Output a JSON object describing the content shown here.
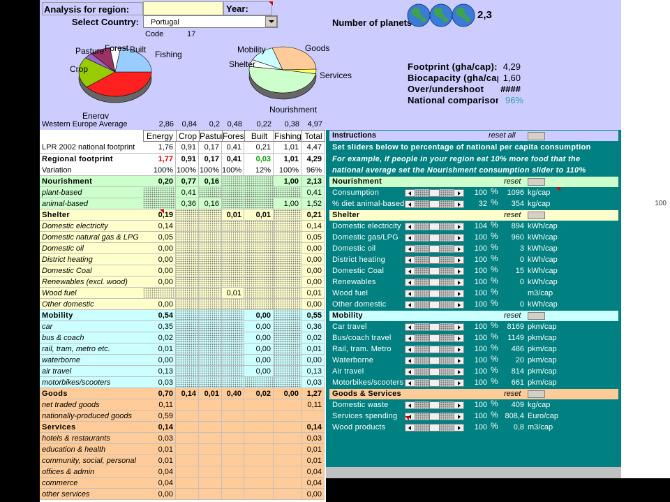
{
  "header": {
    "region_label": "Analysis for region:",
    "year_label": "Year:",
    "country_label": "Select Country:",
    "country": "Portugal",
    "code_label": "Code",
    "code": "17",
    "planets_label": "Number of planets",
    "planets": "2,3"
  },
  "pies": [
    {
      "categories": [
        "Energy",
        "Crop",
        "Pasture",
        "Forest",
        "Built",
        "Fishing"
      ],
      "values": [
        1.76,
        0.91,
        0.17,
        0.41,
        0.21,
        1.01
      ],
      "colors": [
        "#ff2020",
        "#99cc00",
        "#9966cc",
        "#993366",
        "#ffffff",
        "#99ccff"
      ]
    },
    {
      "categories": [
        "Nourishment",
        "Shelter",
        "Mobility",
        "Goods",
        "Services"
      ],
      "values": [
        2.13,
        0.21,
        0.55,
        1.27,
        0.14
      ],
      "colors": [
        "#ccffcc",
        "#ffffff",
        "#ccffff",
        "#ffcc99",
        "#ffff66"
      ]
    }
  ],
  "summary": [
    {
      "label": "Footprint (gha/cap):",
      "value": "4,29"
    },
    {
      "label": "Biocapacity (gha/cap):",
      "value": "1,60"
    },
    {
      "label": "Over/undershoot",
      "value": "####"
    },
    {
      "label": "National comparison",
      "value": "96%"
    }
  ],
  "table": {
    "columns": [
      "Energy",
      "Crop",
      "Pasture",
      "Forest",
      "Built",
      "Fishing",
      "Total"
    ],
    "average": {
      "label": "Western Europe Average",
      "cells": [
        "2,86",
        "0,84",
        "0,2",
        "0,48",
        "0,22",
        "0,38",
        "4,97"
      ]
    },
    "rows": [
      {
        "label": "LPR 2002 national footprint",
        "cells": [
          "1,76",
          "0,91",
          "0,17",
          "0,41",
          "0,21",
          "1,01",
          "4,47"
        ]
      },
      {
        "label": "Regional footprint",
        "cells": [
          "1,77",
          "0,91",
          "0,17",
          "0,41",
          "0,03",
          "1,01",
          "4,29"
        ]
      },
      {
        "label": "Variation",
        "cells": [
          "100%",
          "100%",
          "100%",
          "100%",
          "12%",
          "100%",
          "96%"
        ]
      },
      {
        "label": "Nourishment",
        "cells": [
          "0,20",
          "0,77",
          "0,16",
          null,
          null,
          "1,00",
          "2,13"
        ]
      },
      {
        "label": "plant-based",
        "cells": [
          null,
          "0,41",
          null,
          null,
          null,
          null,
          "0,41"
        ]
      },
      {
        "label": "animal-based",
        "cells": [
          null,
          "0,36",
          "0,16",
          null,
          null,
          "1,00",
          "1,52"
        ]
      },
      {
        "label": "Shelter",
        "cells": [
          "0,19",
          null,
          null,
          "0,01",
          "0,01",
          null,
          "0,21"
        ]
      },
      {
        "label": "Domestic electricity",
        "cells": [
          "0,14",
          null,
          null,
          null,
          null,
          null,
          "0,14"
        ]
      },
      {
        "label": "Domestic natural gas & LPG",
        "cells": [
          "0,05",
          null,
          null,
          null,
          null,
          null,
          "0,05"
        ]
      },
      {
        "label": "Domestic oil",
        "cells": [
          "0,00",
          null,
          null,
          null,
          null,
          null,
          "0,00"
        ]
      },
      {
        "label": "District heating",
        "cells": [
          "0,00",
          null,
          null,
          null,
          null,
          null,
          "0,00"
        ]
      },
      {
        "label": "Domestic Coal",
        "cells": [
          "0,00",
          null,
          null,
          null,
          null,
          null,
          "0,00"
        ]
      },
      {
        "label": "Renewables (excl. wood)",
        "cells": [
          "0,00",
          null,
          null,
          null,
          null,
          null,
          "0,00"
        ]
      },
      {
        "label": "Wood fuel",
        "cells": [
          null,
          null,
          null,
          "0,01",
          null,
          null,
          "0,01"
        ]
      },
      {
        "label": "Other domestic",
        "cells": [
          "0,00",
          null,
          null,
          null,
          null,
          null,
          "0,00"
        ]
      },
      {
        "label": "Mobility",
        "cells": [
          "0,54",
          null,
          null,
          null,
          "0,00",
          null,
          "0,55"
        ]
      },
      {
        "label": "car",
        "cells": [
          "0,35",
          null,
          null,
          null,
          "0,00",
          null,
          "0,36"
        ]
      },
      {
        "label": "bus & coach",
        "cells": [
          "0,02",
          null,
          null,
          null,
          "0,00",
          null,
          "0,02"
        ]
      },
      {
        "label": "rail, tram, metro etc.",
        "cells": [
          "0,01",
          null,
          null,
          null,
          "0,00",
          null,
          "0,01"
        ]
      },
      {
        "label": "waterborne",
        "cells": [
          "0,00",
          null,
          null,
          null,
          "0,00",
          null,
          "0,00"
        ]
      },
      {
        "label": "air travel",
        "cells": [
          "0,13",
          null,
          null,
          null,
          "0,00",
          null,
          "0,13"
        ]
      },
      {
        "label": "motorbikes/scooters",
        "cells": [
          "0,03",
          null,
          null,
          null,
          null,
          null,
          "0,03"
        ]
      },
      {
        "label": "Goods",
        "cells": [
          "0,70",
          "0,14",
          "0,01",
          "0,40",
          "0,02",
          "0,00",
          "1,27"
        ]
      },
      {
        "label": "net traded goods",
        "cells": [
          "0,11",
          null,
          null,
          null,
          null,
          null,
          "0,11"
        ]
      },
      {
        "label": "nationally-produced goods",
        "cells": [
          "0,59",
          null,
          null,
          null,
          null,
          null,
          null
        ]
      },
      {
        "label": "Services",
        "cells": [
          "0,14",
          null,
          null,
          null,
          null,
          null,
          "0,14"
        ]
      },
      {
        "label": "hotels & restaurants",
        "cells": [
          "0,03",
          null,
          null,
          null,
          null,
          null,
          "0,03"
        ]
      },
      {
        "label": "education & health",
        "cells": [
          "0,01",
          null,
          null,
          null,
          null,
          null,
          "0,01"
        ]
      },
      {
        "label": "community, social, personal",
        "cells": [
          "0,01",
          null,
          null,
          null,
          null,
          null,
          "0,01"
        ]
      },
      {
        "label": "offices & admin",
        "cells": [
          "0,04",
          null,
          null,
          null,
          null,
          null,
          "0,04"
        ]
      },
      {
        "label": "commerce",
        "cells": [
          "0,04",
          null,
          null,
          null,
          null,
          null,
          "0,04"
        ]
      },
      {
        "label": "other services",
        "cells": [
          "0,00",
          null,
          null,
          null,
          null,
          null,
          "0,00"
        ]
      }
    ]
  },
  "panel": {
    "title": "Instructions",
    "reset_all": "reset all",
    "pct_sign": "%",
    "stray": "100",
    "notes": [
      "Set sliders below to percentage of national per capita consumption",
      "For example, if people in your region eat 10% more food that the",
      "national average set the Nourishment consumption slider to 110%"
    ],
    "rows": [
      {
        "label": "Nourishment",
        "action": "reset"
      },
      {
        "label": "Consumption",
        "pct": "100",
        "value": "1096",
        "unit": "kg/cap"
      },
      {
        "label": "% diet animal-based",
        "pct": "32",
        "value": "354",
        "unit": "kg/cap"
      },
      {
        "label": "Shelter",
        "action": "reset"
      },
      {
        "label": "Domestic electricity",
        "pct": "104",
        "value": "894",
        "unit": "kWh/cap"
      },
      {
        "label": "Domestic gas/LPG",
        "pct": "100",
        "value": "960",
        "unit": "kWh/cap"
      },
      {
        "label": "Domestic oil",
        "pct": "100",
        "value": "3",
        "unit": "kWh/cap"
      },
      {
        "label": "District heating",
        "pct": "100",
        "value": "0",
        "unit": "kWh/cap"
      },
      {
        "label": "Domestic Coal",
        "pct": "100",
        "value": "15",
        "unit": "kWh/cap"
      },
      {
        "label": "Renewables",
        "pct": "100",
        "value": "0",
        "unit": "kWh/cap"
      },
      {
        "label": "Wood fuel",
        "pct": "100",
        "value": null,
        "unit": "m3/cap"
      },
      {
        "label": "Other domestic",
        "pct": "100",
        "value": "0",
        "unit": "kWh/cap"
      },
      {
        "label": "Mobility",
        "action": "reset"
      },
      {
        "label": "Car travel",
        "pct": "100",
        "value": "8169",
        "unit": "pkm/cap"
      },
      {
        "label": "Bus/coach travel",
        "pct": "100",
        "value": "1149",
        "unit": "pkm/cap"
      },
      {
        "label": "Rail, tram. Metro",
        "pct": "100",
        "value": "486",
        "unit": "pkm/cap"
      },
      {
        "label": "Waterborne",
        "pct": "100",
        "value": "20",
        "unit": "pkm/cap"
      },
      {
        "label": "Air travel",
        "pct": "100",
        "value": "814",
        "unit": "pkm/cap"
      },
      {
        "label": "Motorbikes/scooters",
        "pct": "100",
        "value": "661",
        "unit": "pkm/cap"
      },
      {
        "label": "Goods & Services",
        "action": "reset"
      },
      {
        "label": "Domestic waste",
        "pct": "100",
        "value": "409",
        "unit": "kg/cap"
      },
      {
        "label": "Services spending",
        "pct": "100",
        "value": "808,4",
        "unit": "Euro/cap"
      },
      {
        "label": "Wood products",
        "pct": "100",
        "value": "0,8",
        "unit": "m3/cap"
      }
    ]
  }
}
